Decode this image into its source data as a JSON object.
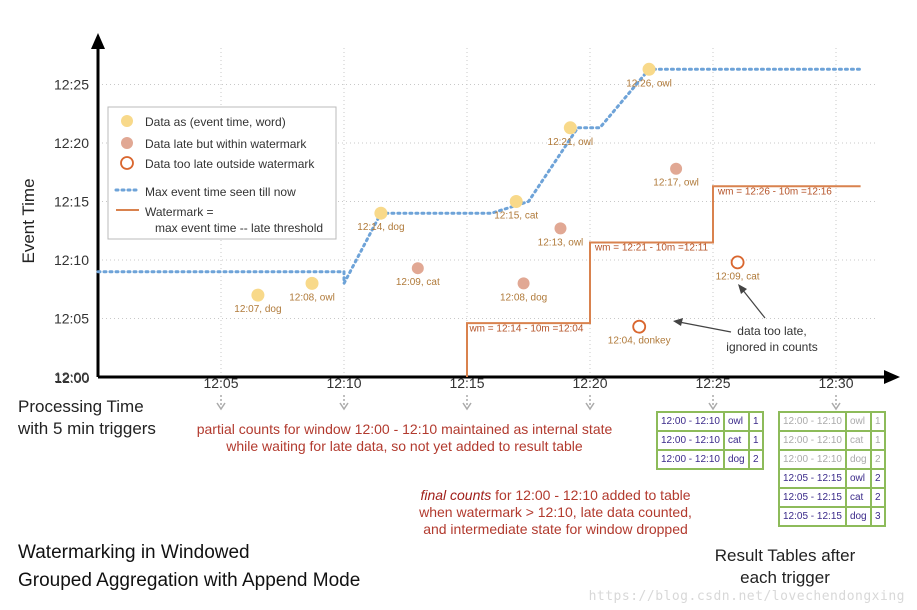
{
  "chart_data": {
    "type": "scatter",
    "xlabel": "Processing Time\nwith 5 min triggers",
    "ylabel": "Event Time",
    "x_ticks": [
      "12:00",
      "12:05",
      "12:10",
      "12:15",
      "12:20",
      "12:25",
      "12:30"
    ],
    "y_ticks": [
      "12:00",
      "12:05",
      "12:10",
      "12:15",
      "12:20",
      "12:25"
    ],
    "xlim": [
      0,
      33
    ],
    "ylim": [
      0,
      27
    ],
    "legend": {
      "position": "top-left",
      "entries": [
        {
          "label": "Data as (event time, word)",
          "kind": "data"
        },
        {
          "label": "Data late but within watermark",
          "kind": "late"
        },
        {
          "label": "Data too late outside watermark",
          "kind": "toolate"
        },
        {
          "label": "Max event time seen till now",
          "kind": "maxline"
        },
        {
          "label": "Watermark =\n    max event time -- late threshold",
          "kind": "watermark"
        }
      ]
    },
    "points": [
      {
        "x": 6.5,
        "y": 7,
        "label": "12:07, dog",
        "kind": "data"
      },
      {
        "x": 8.7,
        "y": 8,
        "label": "12:08, owl",
        "kind": "data"
      },
      {
        "x": 13,
        "y": 9.3,
        "label": "12:09, cat",
        "kind": "late"
      },
      {
        "x": 11.5,
        "y": 14,
        "label": "12:14, dog",
        "kind": "data"
      },
      {
        "x": 17,
        "y": 15,
        "label": "12:15, cat",
        "kind": "data"
      },
      {
        "x": 17.3,
        "y": 8,
        "label": "12:08, dog",
        "kind": "late"
      },
      {
        "x": 18.8,
        "y": 12.7,
        "label": "12:13, owl",
        "kind": "late"
      },
      {
        "x": 19.2,
        "y": 21.3,
        "label": "12:21, owl",
        "kind": "data"
      },
      {
        "x": 22,
        "y": 4.3,
        "label": "12:04, donkey",
        "kind": "toolate"
      },
      {
        "x": 22.4,
        "y": 26.3,
        "label": "12:26, owl",
        "kind": "data"
      },
      {
        "x": 23.5,
        "y": 17.8,
        "label": "12:17, owl",
        "kind": "late"
      },
      {
        "x": 26,
        "y": 9.8,
        "label": "12:09, cat",
        "kind": "toolate"
      }
    ],
    "max_event_line": [
      [
        0,
        9
      ],
      [
        10,
        9
      ],
      [
        10,
        8
      ],
      [
        11.5,
        14
      ],
      [
        16,
        14
      ],
      [
        17.5,
        15
      ],
      [
        19.5,
        21.3
      ],
      [
        20.4,
        21.3
      ],
      [
        22.4,
        26.3
      ],
      [
        31,
        26.3
      ]
    ],
    "watermark_line": [
      [
        15,
        0
      ],
      [
        15,
        4.6
      ],
      [
        20,
        4.6
      ],
      [
        20,
        11.5
      ],
      [
        25,
        11.5
      ],
      [
        25,
        16.3
      ],
      [
        31,
        16.3
      ]
    ],
    "watermark_labels": [
      {
        "x": 15.1,
        "y": 3.9,
        "text": "wm = 12:14 - 10m =12:04"
      },
      {
        "x": 20.2,
        "y": 10.8,
        "text": "wm = 12:21 - 10m =12:11"
      },
      {
        "x": 25.2,
        "y": 15.6,
        "text": "wm = 12:26 - 10m =12:16"
      }
    ],
    "trigger_times": [
      5,
      10,
      15,
      20,
      25,
      30
    ],
    "too_late_note": "data too late,\nignored in counts"
  },
  "annotations": {
    "partial": "partial counts for window 12:00 - 12:10 maintained as internal state while waiting for late data, so not yet added  to result table",
    "final_emph": "final counts",
    "final_rest": " for 12:00 - 12:10 added to table when watermark > 12:10, late data counted, and intermediate state for window dropped"
  },
  "processing_label_1": "Processing Time",
  "processing_label_2": "with 5 min triggers",
  "title": {
    "p1": "Watermarking",
    "p2": " in ",
    "p3": "Windowed",
    "p4": "Grouped Aggregation",
    "p5": " with ",
    "p6": "Append Mode"
  },
  "result_tables": {
    "title_1": "Result Tables after",
    "title_2": "each trigger",
    "t1": [
      [
        "12:00 - 12:10",
        "owl",
        "1"
      ],
      [
        "12:00 - 12:10",
        "cat",
        "1"
      ],
      [
        "12:00 - 12:10",
        "dog",
        "2"
      ]
    ],
    "t2": [
      [
        "12:00 - 12:10",
        "owl",
        "1"
      ],
      [
        "12:00 - 12:10",
        "cat",
        "1"
      ],
      [
        "12:00 - 12:10",
        "dog",
        "2"
      ],
      [
        "12:05 - 12:15",
        "owl",
        "2"
      ],
      [
        "12:05 - 12:15",
        "cat",
        "2"
      ],
      [
        "12:05 - 12:15",
        "dog",
        "3"
      ]
    ]
  },
  "watermark_text": "https://blog.csdn.net/lovechendongxing",
  "colors": {
    "data": "#f8d98a",
    "late": "#e1a894",
    "toolate_stroke": "#d9662e",
    "max_line": "#6ea3d8",
    "watermark": "#d9824e",
    "grid": "#c8c8c8",
    "annotation": "#b23a2e",
    "table_border": "#8dbb5a"
  }
}
